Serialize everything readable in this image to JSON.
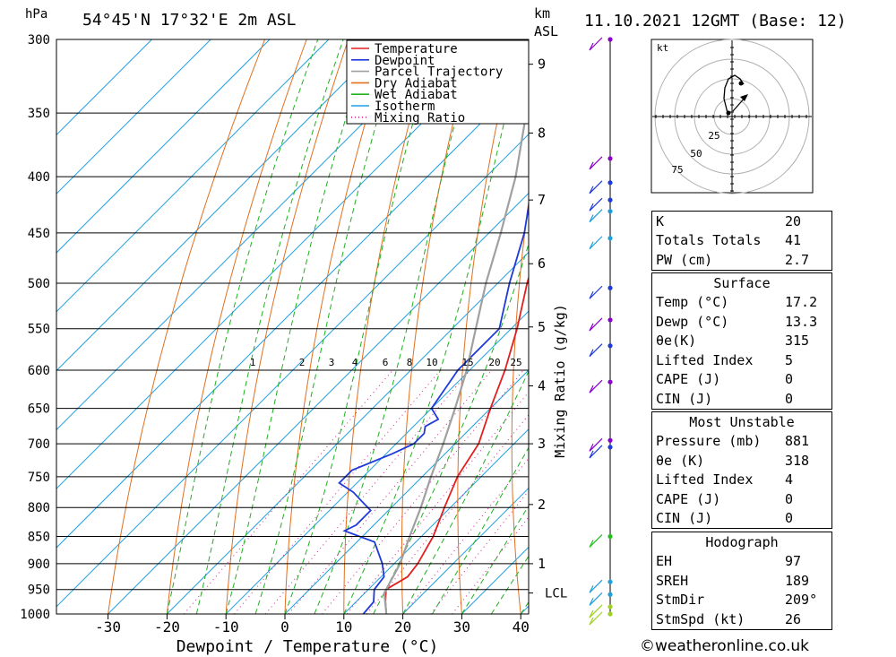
{
  "header": {
    "location": "54°45'N  17°32'E  2m  ASL",
    "datetime": "11.10.2021  12GMT  (Base: 12)",
    "pressure_unit": "hPa",
    "height_unit": "km",
    "height_unit2": "ASL"
  },
  "chart_data": {
    "type": "line",
    "title": "",
    "xlabel": "Dewpoint / Temperature (°C)",
    "ylabel": "hPa",
    "y2label": "Mixing Ratio (g/kg)",
    "xlim": [
      -40,
      40
    ],
    "ylim": [
      1000,
      300
    ],
    "x_ticks": [
      -30,
      -20,
      -10,
      0,
      10,
      20,
      30,
      40
    ],
    "pressure_ticks": [
      300,
      350,
      400,
      450,
      500,
      550,
      600,
      650,
      700,
      750,
      800,
      850,
      900,
      950,
      1000
    ],
    "height_ticks_km": [
      1,
      2,
      3,
      4,
      5,
      6,
      7,
      8,
      9
    ],
    "lcl_label": "LCL",
    "lcl_pressure": 957,
    "mixing_ratio_labels": [
      "1",
      "2",
      "3",
      "4",
      "6",
      "8",
      "10",
      "15",
      "20",
      "25"
    ],
    "legend": [
      "Temperature",
      "Dewpoint",
      "Parcel Trajectory",
      "Dry Adiabat",
      "Wet Adiabat",
      "Isotherm",
      "Mixing Ratio"
    ],
    "series": [
      {
        "name": "Temperature",
        "color": "#e02020",
        "points": [
          [
            1000,
            17.2
          ],
          [
            975,
            15
          ],
          [
            950,
            13
          ],
          [
            925,
            14.5
          ],
          [
            900,
            14
          ],
          [
            850,
            12
          ],
          [
            800,
            9
          ],
          [
            750,
            6
          ],
          [
            700,
            4
          ],
          [
            650,
            0
          ],
          [
            600,
            -4
          ],
          [
            550,
            -9
          ],
          [
            500,
            -15
          ],
          [
            450,
            -21
          ],
          [
            400,
            -28
          ],
          [
            350,
            -37
          ],
          [
            300,
            -45
          ]
        ]
      },
      {
        "name": "Dewpoint",
        "color": "#1e3ad8",
        "points": [
          [
            1000,
            13.3
          ],
          [
            975,
            13
          ],
          [
            950,
            11
          ],
          [
            925,
            10.5
          ],
          [
            900,
            8
          ],
          [
            860,
            3
          ],
          [
            840,
            -4
          ],
          [
            830,
            -3
          ],
          [
            805,
            -3
          ],
          [
            790,
            -6
          ],
          [
            775,
            -9
          ],
          [
            760,
            -13
          ],
          [
            740,
            -13
          ],
          [
            715,
            -9
          ],
          [
            700,
            -7
          ],
          [
            685,
            -7
          ],
          [
            675,
            -8
          ],
          [
            665,
            -7
          ],
          [
            650,
            -10
          ],
          [
            600,
            -12
          ],
          [
            550,
            -12
          ],
          [
            500,
            -18
          ],
          [
            450,
            -24
          ],
          [
            400,
            -32
          ],
          [
            370,
            -38
          ],
          [
            350,
            -42
          ],
          [
            340,
            -48
          ],
          [
            320,
            -50
          ],
          [
            310,
            -48
          ],
          [
            300,
            -46
          ]
        ]
      },
      {
        "name": "Parcel Trajectory",
        "color": "#a0a0a0",
        "points": [
          [
            1000,
            17.2
          ],
          [
            957,
            13.3
          ],
          [
            900,
            11
          ],
          [
            850,
            8
          ],
          [
            800,
            5
          ],
          [
            750,
            1.5
          ],
          [
            700,
            -2
          ],
          [
            650,
            -6
          ],
          [
            600,
            -10.5
          ],
          [
            550,
            -16
          ],
          [
            500,
            -22
          ],
          [
            450,
            -28
          ],
          [
            400,
            -35
          ],
          [
            350,
            -44
          ],
          [
            300,
            -54
          ]
        ]
      }
    ]
  },
  "wind_profile": {
    "label": "wind barbs",
    "dots": [
      {
        "p": 300,
        "c": "#8800cc"
      },
      {
        "p": 385,
        "c": "#8800cc"
      },
      {
        "p": 405,
        "c": "#1e3ad8"
      },
      {
        "p": 420,
        "c": "#1e3ad8"
      },
      {
        "p": 430,
        "c": "#1e9ad8"
      },
      {
        "p": 455,
        "c": "#1ea0d8"
      },
      {
        "p": 505,
        "c": "#1e3ad8"
      },
      {
        "p": 540,
        "c": "#8800cc"
      },
      {
        "p": 570,
        "c": "#1e3ad8"
      },
      {
        "p": 615,
        "c": "#8800cc"
      },
      {
        "p": 695,
        "c": "#8800cc"
      },
      {
        "p": 705,
        "c": "#1e3ad8"
      },
      {
        "p": 850,
        "c": "#20c020"
      },
      {
        "p": 935,
        "c": "#1ea0d8"
      },
      {
        "p": 960,
        "c": "#1ea0d8"
      },
      {
        "p": 985,
        "c": "#a0d020"
      },
      {
        "p": 1000,
        "c": "#a0d020"
      }
    ]
  },
  "hodograph": {
    "unit": "kt",
    "ring_labels": [
      "25",
      "50",
      "75"
    ]
  },
  "info": {
    "general": [
      {
        "k": "K",
        "v": "20"
      },
      {
        "k": "Totals Totals",
        "v": "41"
      },
      {
        "k": "PW (cm)",
        "v": "2.7"
      }
    ],
    "surface": {
      "title": "Surface",
      "rows": [
        {
          "k": "Temp (°C)",
          "v": "17.2"
        },
        {
          "k": "Dewp (°C)",
          "v": "13.3"
        },
        {
          "k": "θe(K)",
          "v": "315"
        },
        {
          "k": "Lifted Index",
          "v": "5"
        },
        {
          "k": "CAPE (J)",
          "v": "0"
        },
        {
          "k": "CIN (J)",
          "v": "0"
        }
      ]
    },
    "most_unstable": {
      "title": "Most Unstable",
      "rows": [
        {
          "k": "Pressure (mb)",
          "v": "881"
        },
        {
          "k": "θe (K)",
          "v": "318"
        },
        {
          "k": "Lifted Index",
          "v": "4"
        },
        {
          "k": "CAPE (J)",
          "v": "0"
        },
        {
          "k": "CIN (J)",
          "v": "0"
        }
      ]
    },
    "hodograph": {
      "title": "Hodograph",
      "rows": [
        {
          "k": "EH",
          "v": "97"
        },
        {
          "k": "SREH",
          "v": "189"
        },
        {
          "k": "StmDir",
          "v": "209°"
        },
        {
          "k": "StmSpd (kt)",
          "v": "26"
        }
      ]
    }
  },
  "footer": "©weatheronline.co.uk"
}
